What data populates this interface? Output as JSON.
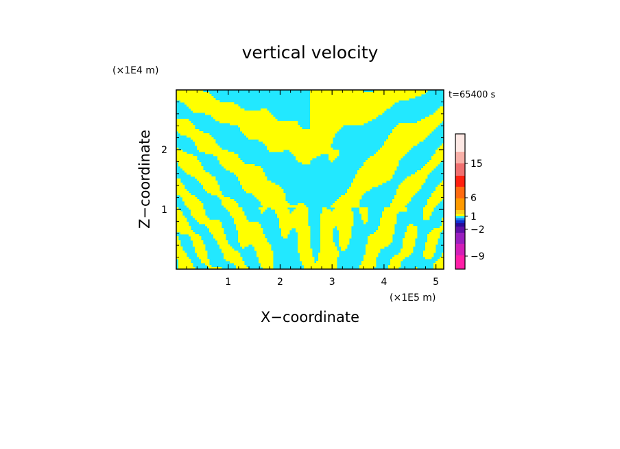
{
  "chart_data": {
    "type": "heatmap",
    "title": "vertical velocity",
    "xlabel": "X−coordinate",
    "ylabel": "Z−coordinate",
    "x_unit": "(×1E5 m)",
    "y_unit": "(×1E4 m)",
    "time_label": "t=65400 s",
    "xlim": [
      0,
      5.15
    ],
    "ylim": [
      0,
      3.0
    ],
    "x_ticks": [
      1,
      2,
      3,
      4,
      5
    ],
    "y_ticks": [
      1,
      2
    ],
    "x_tick_labels": [
      "1",
      "2",
      "3",
      "4",
      "5"
    ],
    "y_tick_labels": [
      "1",
      "2"
    ],
    "colorbar": {
      "labels": [
        {
          "value": 15,
          "text": "15"
        },
        {
          "value": 6,
          "text": "6"
        },
        {
          "value": 1,
          "text": "1"
        },
        {
          "value": -2,
          "text": "−2"
        },
        {
          "value": -9,
          "text": "−9"
        }
      ],
      "levels": [
        {
          "color": "#ff1fa8"
        },
        {
          "color": "#d21fb8"
        },
        {
          "color": "#9a1fbf"
        },
        {
          "color": "#5f10a8"
        },
        {
          "color": "#2a0a9a"
        },
        {
          "color": "#1030d0"
        },
        {
          "color": "#1f7ff0"
        },
        {
          "color": "#22e8ff"
        },
        {
          "color": "#ffff00"
        },
        {
          "color": "#ffd21a"
        },
        {
          "color": "#ff9a00"
        },
        {
          "color": "#ff6a10"
        },
        {
          "color": "#ff2010"
        },
        {
          "color": "#f07070"
        },
        {
          "color": "#f8b0a8"
        },
        {
          "color": "#fde8e4"
        }
      ]
    },
    "field_colors": {
      "negative": "#22e8ff",
      "positive": "#ffff00"
    }
  }
}
